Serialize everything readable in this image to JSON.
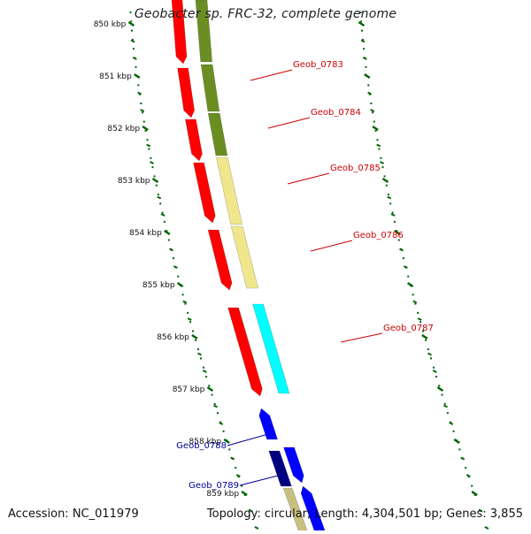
{
  "title": "Geobacter sp. FRC-32, complete genome",
  "footer": {
    "accession": "Accession: NC_011979",
    "summary": "Topology: circular; Length: 4,304,501 bp; Genes: 3,855"
  },
  "ticks": [
    "850 kbp",
    "851 kbp",
    "852 kbp",
    "853 kbp",
    "854 kbp",
    "855 kbp",
    "856 kbp",
    "857 kbp",
    "858 kbp",
    "859 kbp"
  ],
  "gene_labels": {
    "red": [
      "Geob_0783",
      "Geob_0784",
      "Geob_0785",
      "Geob_0786",
      "Geob_0787"
    ],
    "blue": [
      "Geob_0788",
      "Geob_0789"
    ]
  },
  "colors": {
    "cds": "#ff0000",
    "cds_dark": "#b00000",
    "olive": "#6b8e23",
    "khaki": "#f0e68c",
    "cyan": "#00ffff",
    "blue": "#0000ff",
    "navy": "#000080",
    "tick": "#006400",
    "backbone": "#888888",
    "label_red": "#cc0000",
    "label_blue": "#000099"
  }
}
